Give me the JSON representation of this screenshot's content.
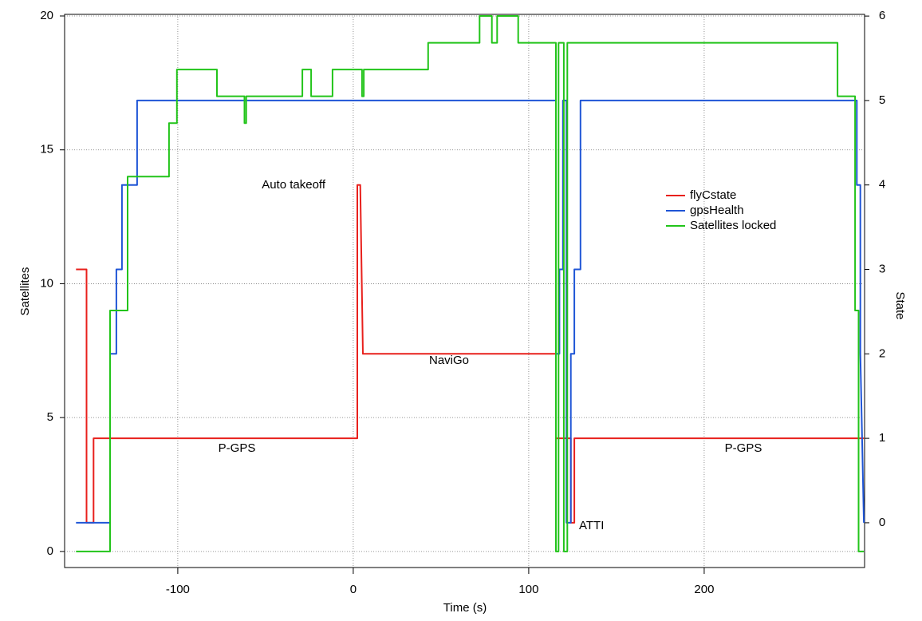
{
  "chart_data": {
    "type": "line",
    "x_label": "Time (s)",
    "y_label": "Satellites",
    "y2_label": "State",
    "xlim": [
      -164.5,
      291.4
    ],
    "ylim": [
      -0.6,
      20.06
    ],
    "y2lim": [
      -0.53,
      6.02
    ],
    "xticks": [
      -100,
      0,
      100,
      200
    ],
    "yticks": [
      0,
      5,
      10,
      15,
      20
    ],
    "y2ticks": [
      0,
      1,
      2,
      3,
      4,
      5,
      6
    ],
    "grid": true,
    "legend": "right",
    "series": [
      {
        "name": "flyCstate",
        "color": "#e8201c",
        "axis": "y2",
        "x": [
          -158,
          -152,
          -152,
          -148,
          -148,
          2.3,
          2.3,
          4,
          5.5,
          115.5,
          115.5,
          124,
          124,
          126,
          126,
          291
        ],
        "values": [
          3,
          3,
          0,
          0,
          1,
          1,
          4,
          4,
          2,
          2,
          1,
          1,
          0,
          0,
          1,
          1
        ]
      },
      {
        "name": "gpsHealth",
        "color": "#1f55d6",
        "axis": "y2",
        "x": [
          -158,
          -138.6,
          -138.6,
          -135,
          -135,
          -131.8,
          -131.8,
          -123.2,
          -123.2,
          115.5,
          115.5,
          117.5,
          117.5,
          119.5,
          119.5,
          121.5,
          121.5,
          124,
          124,
          126,
          126,
          129.5,
          129.5,
          287,
          287,
          289,
          289,
          291
        ],
        "values": [
          0,
          0,
          2,
          2,
          3,
          3,
          4,
          4,
          5,
          5,
          2,
          2,
          3,
          3,
          5,
          5,
          0,
          0,
          2,
          2,
          3,
          3,
          5,
          5,
          4,
          4,
          2,
          0
        ]
      },
      {
        "name": "Satellites locked",
        "color": "#22c41a",
        "x": [
          -158,
          -138.6,
          -138.6,
          -128.6,
          -128.6,
          -105,
          -105,
          -100.5,
          -100.5,
          -77.7,
          -77.7,
          -62,
          -62,
          -61,
          -61,
          -29,
          -29,
          -24,
          -24,
          -11.8,
          -11.8,
          5,
          5,
          6,
          6,
          42.7,
          42.7,
          72,
          72,
          79,
          79,
          82,
          82,
          94,
          94,
          115.5,
          115.5,
          117,
          117,
          120,
          120,
          122,
          122,
          124,
          124,
          276,
          276,
          286,
          286,
          288,
          288,
          291
        ],
        "values": [
          0,
          0,
          9,
          9,
          14,
          14,
          16,
          16,
          18,
          18,
          17,
          17,
          16,
          16,
          17,
          17,
          18,
          18,
          17,
          17,
          18,
          18,
          17,
          17,
          18,
          18,
          19,
          19,
          20,
          20,
          19,
          19,
          20,
          20,
          19,
          19,
          0,
          0,
          19,
          19,
          0,
          0,
          19,
          19,
          19,
          19,
          17,
          17,
          9,
          9,
          0,
          0
        ]
      }
    ],
    "annotations": [
      "Auto takeoff",
      "NaviGo",
      "P-GPS",
      "P-GPS",
      "ATTI"
    ]
  }
}
